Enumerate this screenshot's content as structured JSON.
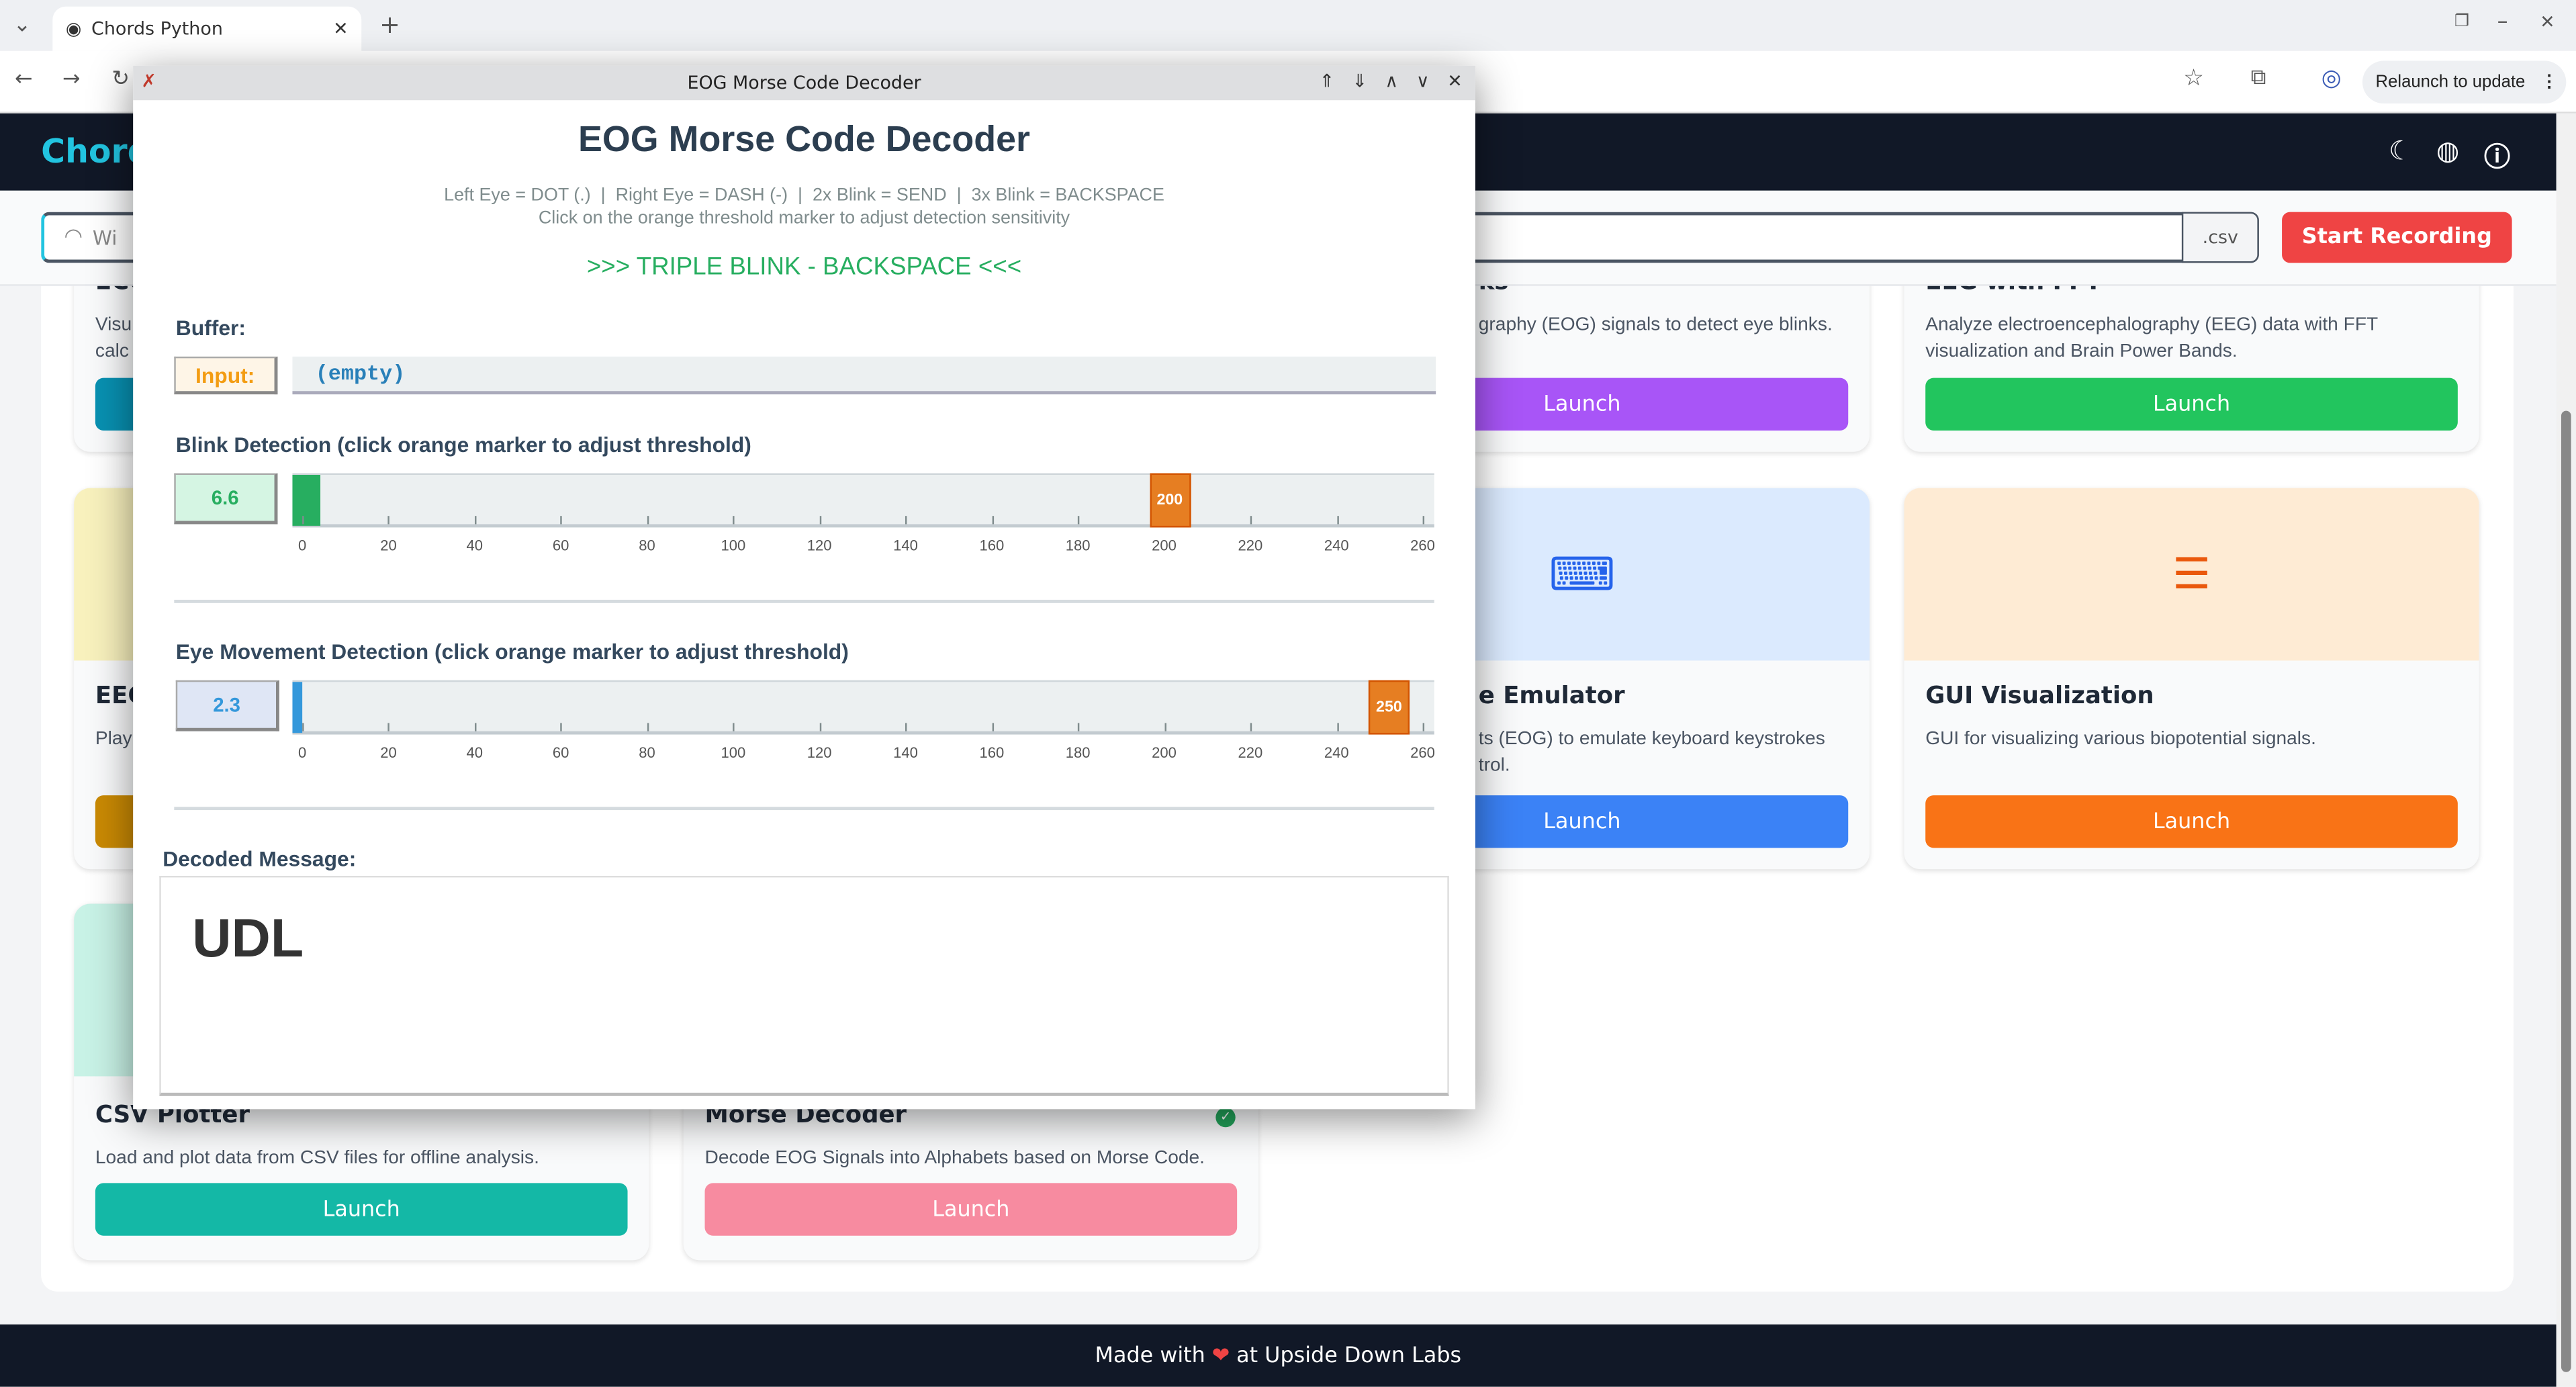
{
  "browser": {
    "tab_title": "Chords Python",
    "relaunch_label": "Relaunch to update"
  },
  "app": {
    "brand": "Chords",
    "record_placeholder": "Wi",
    "csv_suffix": ".csv",
    "start_recording": "Start Recording",
    "footer_pre": "Made with",
    "footer_post": "at Upside Down Labs"
  },
  "cards": [
    {
      "title": "ECG",
      "desc": "Visu calc",
      "launch": "Launch",
      "color": "#0891b2"
    },
    {
      "title": "ks",
      "desc": "graphy (EOG) signals to detect eye blinks.",
      "launch": "Launch",
      "color": "#a855f7"
    },
    {
      "title": "EEG with FFT",
      "desc": "Analyze electroencephalography (EEG) data with FFT visualization and Brain Power Bands.",
      "launch": "Launch",
      "color": "#22c55e"
    },
    {
      "title": "EEG",
      "desc": "Play",
      "launch": "Launch",
      "color": "#ca8a04"
    },
    {
      "title": "e Emulator",
      "desc": "ts (EOG) to emulate keyboard keystrokes trol.",
      "launch": "Launch",
      "color": "#3b82f6"
    },
    {
      "title": "GUI Visualization",
      "desc": "GUI for visualizing various biopotential signals.",
      "launch": "Launch",
      "color": "#f97316"
    },
    {
      "title": "CSV Plotter",
      "desc": "Load and plot data from CSV files for offline analysis.",
      "launch": "Launch",
      "color": "#14b8a6"
    },
    {
      "title": "Morse Decoder",
      "desc": "Decode EOG Signals into Alphabets based on Morse Code.",
      "launch": "Launch",
      "color": "#f78ba0"
    }
  ],
  "dialog": {
    "window_title": "EOG Morse Code Decoder",
    "heading": "EOG Morse Code Decoder",
    "instructions": "Left Eye = DOT (.)  |  Right Eye = DASH (-)  |  2x Blink = SEND  |  3x Blink = BACKSPACE",
    "hint": "Click on the orange threshold marker to adjust detection sensitivity",
    "status": ">>> TRIPLE BLINK - BACKSPACE <<<",
    "buffer_label": "Buffer:",
    "input_label": "Input:",
    "buffer_value": "(empty)",
    "blink": {
      "label": "Blink Detection (click orange marker to adjust threshold)",
      "value": 6.6,
      "value_text": "6.6",
      "threshold": 200,
      "threshold_text": "200",
      "fill_color": "#27ae60"
    },
    "eye": {
      "label": "Eye Movement Detection (click orange marker to adjust threshold)",
      "value": 2.3,
      "value_text": "2.3",
      "threshold": 250,
      "threshold_text": "250",
      "fill_color": "#3498db"
    },
    "axis_ticks": [
      "0",
      "20",
      "40",
      "60",
      "80",
      "100",
      "120",
      "140",
      "160",
      "180",
      "200",
      "220",
      "240",
      "260"
    ],
    "decoded_label": "Decoded Message:",
    "decoded_text": "UDL"
  }
}
